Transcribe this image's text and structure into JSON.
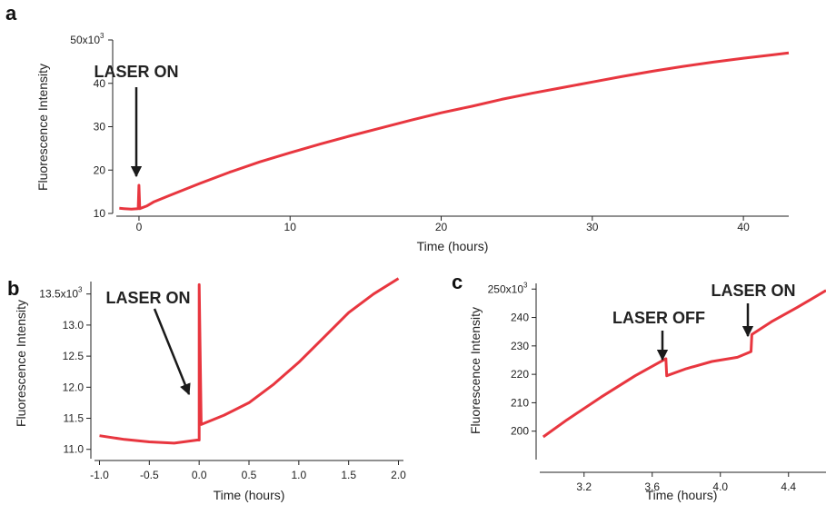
{
  "chart_data": [
    {
      "panel": "a",
      "type": "line",
      "xlabel": "Time (hours)",
      "ylabel": "Fluorescence Intensity",
      "xlim": [
        -1.5,
        43
      ],
      "ylim": [
        10000,
        50000
      ],
      "x_ticks": [
        0,
        10,
        20,
        30,
        40
      ],
      "y_tick_labels": [
        "10",
        "20",
        "30",
        "40",
        "50x10"
      ],
      "y_exponent": "3",
      "series": [
        {
          "color": "#e8363f",
          "x": [
            -1.3,
            -1.0,
            -0.5,
            -0.05,
            0.0,
            0.05,
            0.5,
            1,
            2,
            4,
            6,
            8,
            10,
            12,
            14,
            16,
            18,
            20,
            22,
            24,
            26,
            28,
            30,
            32,
            34,
            36,
            38,
            40,
            42,
            43
          ],
          "y": [
            11200,
            11100,
            11000,
            11100,
            16500,
            11100,
            11700,
            12700,
            14100,
            16900,
            19500,
            21900,
            24000,
            26000,
            27900,
            29700,
            31500,
            33200,
            34700,
            36300,
            37700,
            39000,
            40300,
            41600,
            42800,
            43900,
            44900,
            45800,
            46600,
            47000
          ]
        }
      ],
      "annotations": [
        {
          "text": "LASER ON",
          "x": 0.0,
          "y": 17000
        }
      ]
    },
    {
      "panel": "b",
      "type": "line",
      "xlabel": "Time (hours)",
      "ylabel": "Fluorescence Intensity",
      "xlim": [
        -1.05,
        2.05
      ],
      "ylim": [
        10850,
        13700
      ],
      "x_tick_labels": [
        "-1.0",
        "-0.5",
        "0.0",
        "0.5",
        "1.0",
        "1.5",
        "2.0"
      ],
      "x_ticks": [
        -1.0,
        -0.5,
        0.0,
        0.5,
        1.0,
        1.5,
        2.0
      ],
      "y_ticks": [
        11000,
        11500,
        12000,
        12500,
        13000,
        13500
      ],
      "y_tick_labels": [
        "11.0",
        "11.5",
        "12.0",
        "12.5",
        "13.0",
        "13.5x10"
      ],
      "y_exponent": "3",
      "series": [
        {
          "color": "#e8363f",
          "x": [
            -1.0,
            -0.75,
            -0.5,
            -0.25,
            -0.02,
            0.0,
            0.0,
            0.02,
            0.25,
            0.5,
            0.75,
            1.0,
            1.25,
            1.5,
            1.75,
            2.0
          ],
          "y": [
            11220,
            11160,
            11120,
            11100,
            11150,
            11150,
            13650,
            11400,
            11550,
            11750,
            12050,
            12400,
            12800,
            13200,
            13500,
            13750
          ]
        }
      ],
      "annotations": [
        {
          "text": "LASER ON",
          "x": -0.05,
          "y": 11850
        }
      ]
    },
    {
      "panel": "c",
      "type": "line",
      "xlabel": "Time (hours)",
      "ylabel": "Fluorescence Intensity",
      "xlim": [
        2.94,
        4.62
      ],
      "ylim": [
        190000,
        252000
      ],
      "x_tick_labels": [
        "3.2",
        "3.6",
        "4.0",
        "4.4"
      ],
      "x_ticks": [
        3.2,
        3.6,
        4.0,
        4.4
      ],
      "y_ticks": [
        200000,
        210000,
        220000,
        230000,
        240000,
        250000
      ],
      "y_tick_labels": [
        "200",
        "210",
        "220",
        "230",
        "240",
        "250x10"
      ],
      "y_exponent": "3",
      "series": [
        {
          "color": "#e8363f",
          "x": [
            2.96,
            3.1,
            3.3,
            3.5,
            3.68,
            3.685,
            3.8,
            3.95,
            4.1,
            4.18,
            4.185,
            4.3,
            4.45,
            4.62
          ],
          "y": [
            198000,
            204000,
            212000,
            219500,
            225500,
            219500,
            222000,
            224500,
            226000,
            228000,
            234000,
            238500,
            243500,
            249500
          ]
        }
      ],
      "annotations": [
        {
          "text": "LASER OFF",
          "x": 3.68,
          "y": 228000
        },
        {
          "text": "LASER ON",
          "x": 4.18,
          "y": 236500
        }
      ]
    }
  ]
}
